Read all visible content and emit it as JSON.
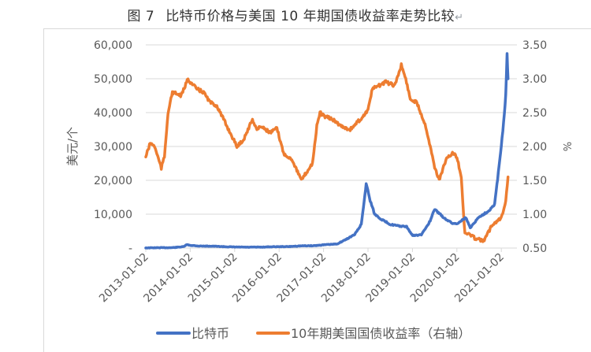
{
  "title": {
    "figure_label": "图 7",
    "text": "比特币价格与美国 10 年期国债收益率走势比较",
    "return_mark": "↵"
  },
  "chart_data": {
    "type": "line",
    "title": "图 7 比特币价格与美国 10 年期国债收益率走势比较",
    "xlabel": "",
    "ylabel": "美元/个",
    "ylabel_right": "%",
    "ylim": [
      0,
      60000
    ],
    "ylim_right": [
      0.5,
      3.5
    ],
    "grid": true,
    "legend_position": "bottom",
    "x_ticks": [
      "2013-01-02",
      "2014-01-02",
      "2015-01-02",
      "2016-01-02",
      "2017-01-02",
      "2018-01-02",
      "2019-01-02",
      "2020-01-02",
      "2021-01-02"
    ],
    "y_ticks_left": [
      "-",
      "10,000",
      "20,000",
      "30,000",
      "40,000",
      "50,000",
      "60,000"
    ],
    "y_ticks_right": [
      "0.50",
      "1.00",
      "1.50",
      "2.00",
      "2.50",
      "3.00",
      "3.50"
    ],
    "series": [
      {
        "name": "比特币",
        "axis": "left",
        "color": "#4472c4",
        "x": [
          2013.0,
          2013.3,
          2013.6,
          2013.85,
          2013.92,
          2014.0,
          2014.2,
          2014.5,
          2014.8,
          2015.0,
          2015.3,
          2015.6,
          2015.9,
          2016.2,
          2016.5,
          2016.8,
          2017.0,
          2017.3,
          2017.5,
          2017.7,
          2017.85,
          2017.96,
          2018.05,
          2018.15,
          2018.3,
          2018.5,
          2018.7,
          2018.87,
          2019.0,
          2019.2,
          2019.4,
          2019.5,
          2019.7,
          2019.9,
          2020.0,
          2020.2,
          2020.3,
          2020.5,
          2020.7,
          2020.85,
          2021.0,
          2021.05,
          2021.1,
          2021.13,
          2021.15
        ],
        "values": [
          50,
          100,
          120,
          400,
          1000,
          800,
          600,
          550,
          380,
          300,
          250,
          280,
          400,
          420,
          650,
          700,
          950,
          1200,
          2500,
          4000,
          7000,
          19000,
          14000,
          10000,
          8500,
          7000,
          6500,
          6300,
          3700,
          3900,
          8000,
          11500,
          9000,
          7300,
          7200,
          9000,
          6000,
          9200,
          10800,
          13000,
          30000,
          37000,
          45000,
          57000,
          50000
        ]
      },
      {
        "name": "10年期美国国债收益率（右轴）",
        "axis": "right",
        "color": "#ed7d31",
        "x": [
          2013.0,
          2013.1,
          2013.2,
          2013.35,
          2013.42,
          2013.5,
          2013.6,
          2013.8,
          2013.95,
          2014.0,
          2014.15,
          2014.3,
          2014.45,
          2014.6,
          2014.75,
          2014.9,
          2015.05,
          2015.2,
          2015.4,
          2015.5,
          2015.6,
          2015.8,
          2015.95,
          2016.1,
          2016.3,
          2016.5,
          2016.6,
          2016.75,
          2016.85,
          2016.92,
          2017.0,
          2017.2,
          2017.4,
          2017.6,
          2017.75,
          2017.9,
          2018.0,
          2018.1,
          2018.25,
          2018.4,
          2018.6,
          2018.75,
          2018.85,
          2018.95,
          2019.1,
          2019.3,
          2019.5,
          2019.6,
          2019.75,
          2019.9,
          2020.0,
          2020.1,
          2020.18,
          2020.25,
          2020.4,
          2020.6,
          2020.8,
          2021.0,
          2021.1,
          2021.15
        ],
        "values": [
          1.85,
          2.05,
          2.0,
          1.68,
          1.85,
          2.5,
          2.8,
          2.75,
          3.0,
          2.95,
          2.85,
          2.8,
          2.65,
          2.6,
          2.4,
          2.2,
          2.0,
          2.1,
          2.4,
          2.25,
          2.3,
          2.2,
          2.27,
          1.9,
          1.8,
          1.5,
          1.6,
          1.75,
          2.3,
          2.5,
          2.45,
          2.4,
          2.3,
          2.25,
          2.35,
          2.45,
          2.55,
          2.85,
          2.9,
          2.95,
          2.9,
          3.2,
          3.0,
          2.7,
          2.65,
          2.3,
          1.7,
          1.5,
          1.8,
          1.9,
          1.85,
          1.55,
          0.7,
          0.72,
          0.65,
          0.6,
          0.85,
          0.95,
          1.2,
          1.55
        ]
      }
    ]
  },
  "axes": {
    "left_label": "美元/个",
    "right_label": "%"
  },
  "legend": {
    "items": [
      {
        "label": "比特币",
        "color": "#4472c4"
      },
      {
        "label": "10年期美国国债收益率（右轴）",
        "color": "#ed7d31"
      }
    ]
  }
}
